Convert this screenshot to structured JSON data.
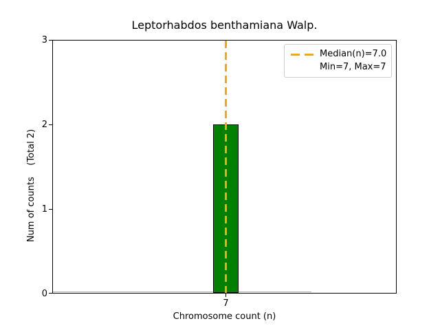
{
  "chart_data": {
    "type": "bar",
    "title": "Leptorhabdos benthamiana Walp.",
    "xlabel": "Chromosome count (n)",
    "ylabel": "Num of counts    (Total 2)",
    "categories": [
      "7"
    ],
    "values": [
      2
    ],
    "x_ticks": [
      "7"
    ],
    "y_ticks": [
      "0",
      "1",
      "2",
      "3"
    ],
    "ylim": [
      0,
      3
    ],
    "total_counts": 2,
    "min": 7,
    "max": 7,
    "bar_color": "#008000",
    "bar_edge_color": "#000000",
    "baseline_color": "#b4b4b4",
    "median_line": {
      "value": 7.0,
      "color": "#FFA500",
      "style": "dashed"
    },
    "legend": {
      "position": "upper right",
      "entries": [
        {
          "marker": "orange-dashed-line",
          "label": "Median(n)=7.0"
        },
        {
          "marker": "none",
          "label": "Min=7, Max=7"
        }
      ]
    },
    "grid": false
  }
}
